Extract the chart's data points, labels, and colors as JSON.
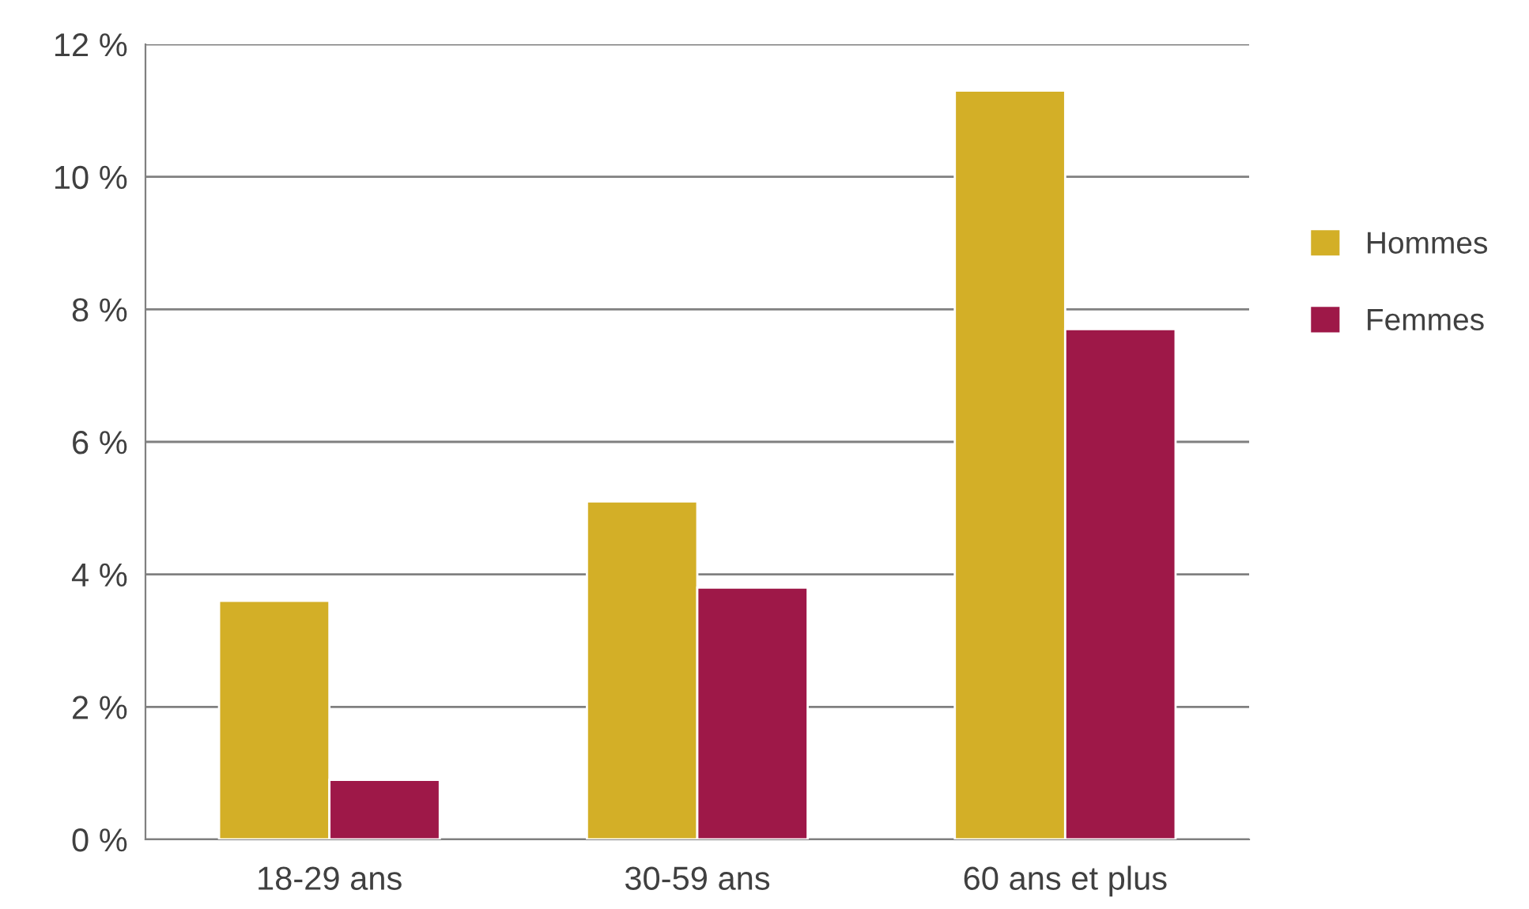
{
  "chart_data": {
    "type": "bar",
    "categories": [
      "18-29 ans",
      "30-59 ans",
      "60 ans et plus"
    ],
    "series": [
      {
        "name": "Hommes",
        "color": "#d3af27",
        "values": [
          3.6,
          5.1,
          11.3
        ]
      },
      {
        "name": "Femmes",
        "color": "#9e1848",
        "values": [
          0.9,
          3.8,
          7.7
        ]
      }
    ],
    "ylim": [
      0,
      12
    ],
    "yticks": [
      {
        "value": 0,
        "label": "0 %"
      },
      {
        "value": 2,
        "label": "2 %"
      },
      {
        "value": 4,
        "label": "4 %"
      },
      {
        "value": 6,
        "label": "6 %"
      },
      {
        "value": 8,
        "label": "8 %"
      },
      {
        "value": 10,
        "label": "10 %"
      },
      {
        "value": 12,
        "label": "12 %"
      }
    ],
    "grid": "y",
    "legend": "right"
  }
}
